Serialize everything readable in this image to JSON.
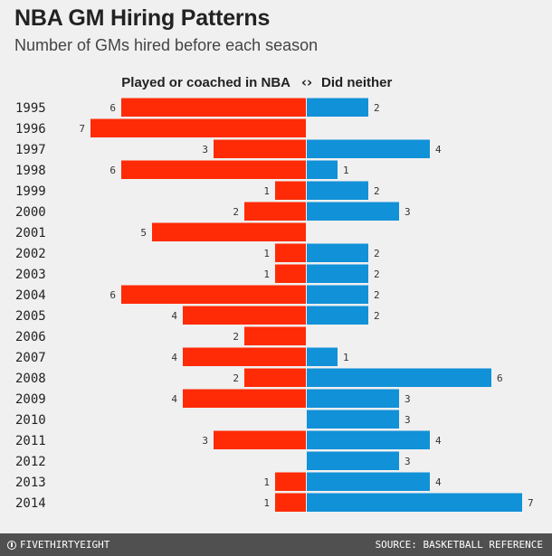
{
  "header": {
    "title": "NBA GM Hiring Patterns",
    "subtitle": "Number of GMs hired before each season"
  },
  "footer": {
    "brand": "FIVETHIRTYEIGHT",
    "source": "SOURCE: BASKETBALL REFERENCE"
  },
  "colors": {
    "left_series": "#ff2b06",
    "right_series": "#1191d8",
    "background": "#f0f0f0"
  },
  "chart_data": {
    "type": "bar",
    "orientation": "horizontal-diverging",
    "title": "NBA GM Hiring Patterns",
    "subtitle": "Number of GMs hired before each season",
    "arrow_glyph": "‹›",
    "categories": [
      "1995",
      "1996",
      "1997",
      "1998",
      "1999",
      "2000",
      "2001",
      "2002",
      "2003",
      "2004",
      "2005",
      "2006",
      "2007",
      "2008",
      "2009",
      "2010",
      "2011",
      "2012",
      "2013",
      "2014"
    ],
    "series": [
      {
        "name": "Played or coached in NBA",
        "direction": "left",
        "values": [
          6,
          7,
          3,
          6,
          1,
          2,
          5,
          1,
          1,
          6,
          4,
          2,
          4,
          2,
          4,
          0,
          3,
          0,
          1,
          1
        ]
      },
      {
        "name": "Did neither",
        "direction": "right",
        "values": [
          2,
          0,
          4,
          1,
          2,
          3,
          0,
          2,
          2,
          2,
          2,
          0,
          1,
          6,
          3,
          3,
          4,
          3,
          4,
          7
        ]
      }
    ],
    "xlim": [
      -7,
      7
    ],
    "grid": false
  }
}
